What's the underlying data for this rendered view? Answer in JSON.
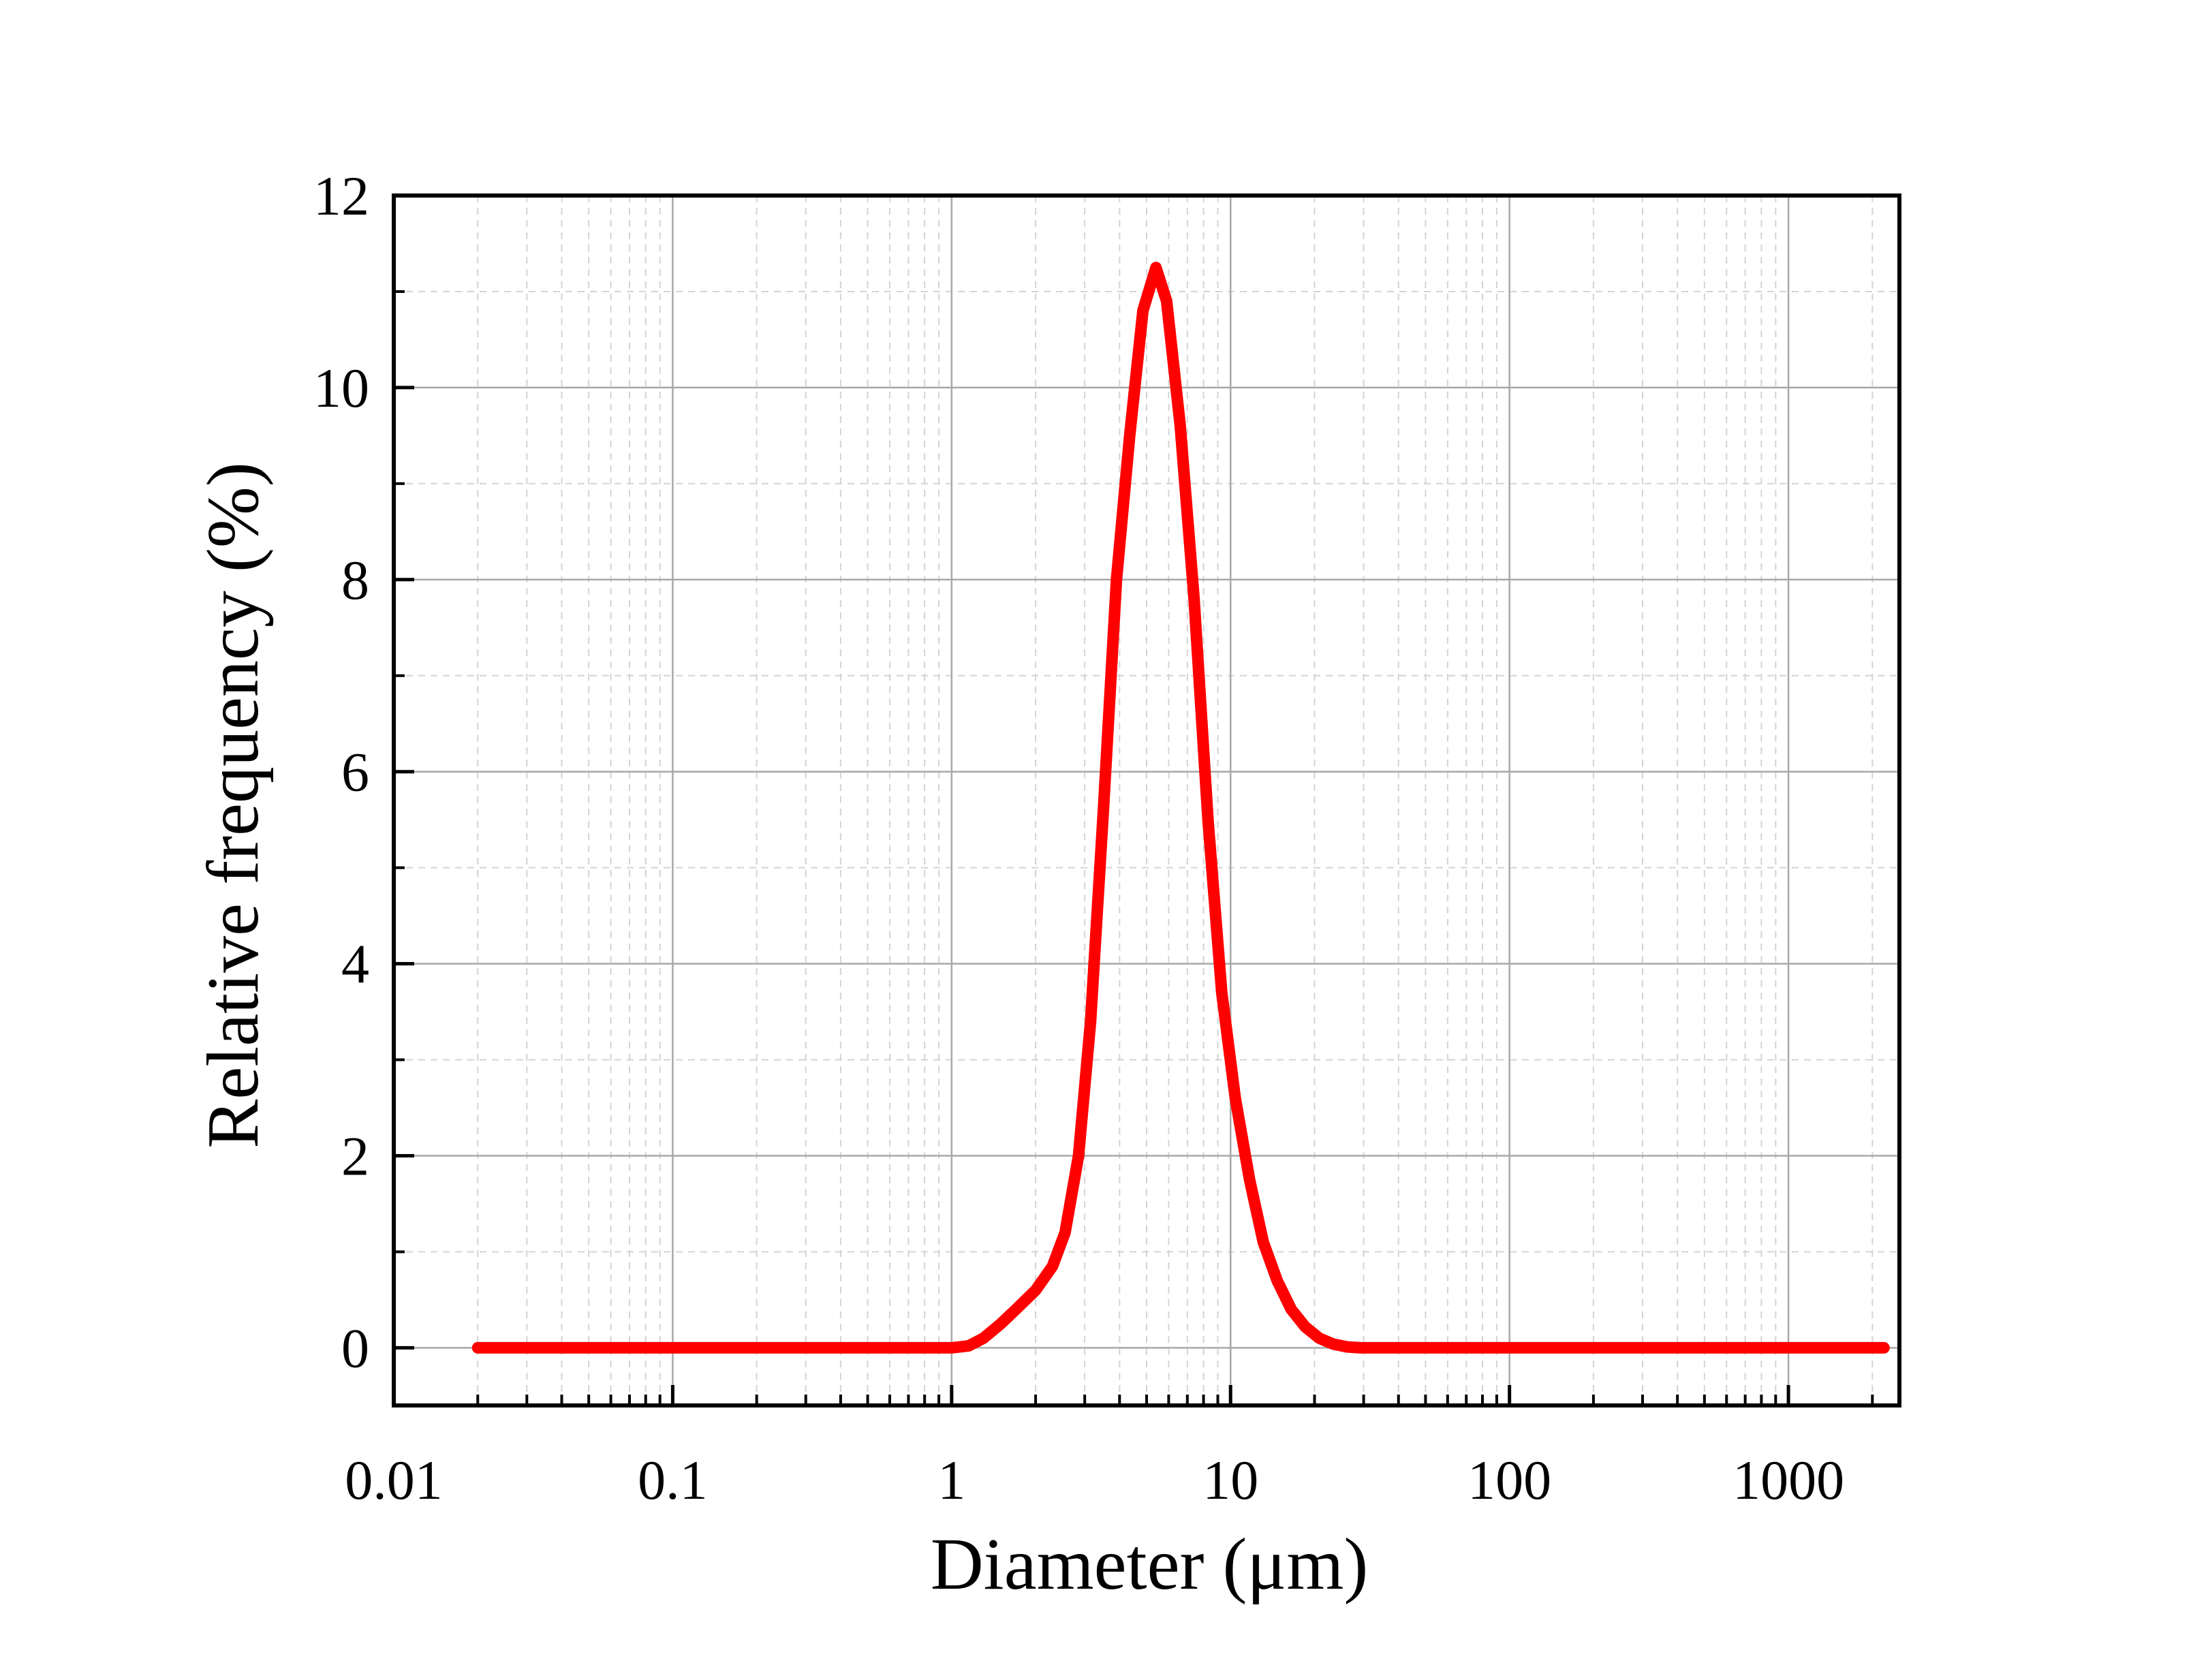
{
  "chart_data": {
    "type": "line",
    "title": "",
    "xlabel": "Diameter (μm)",
    "ylabel": "Relative frequency (%)",
    "x_scale": "log",
    "xlim": [
      0.01,
      2500
    ],
    "ylim": [
      -0.6,
      12
    ],
    "x_ticks": [
      0.01,
      0.1,
      1,
      10,
      100,
      1000
    ],
    "x_tick_labels": [
      "0.01",
      "0.1",
      "1",
      "10",
      "100",
      "1000"
    ],
    "y_ticks": [
      0,
      2,
      4,
      6,
      8,
      10,
      12
    ],
    "y_tick_labels": [
      "0",
      "2",
      "4",
      "6",
      "8",
      "10",
      "12"
    ],
    "grid": true,
    "legend": "none",
    "series": [
      {
        "color": "#ff0000",
        "x": [
          0.02,
          0.05,
          0.1,
          0.3,
          0.7,
          1.0,
          1.15,
          1.3,
          1.5,
          1.7,
          2.0,
          2.3,
          2.55,
          2.85,
          3.15,
          3.5,
          3.9,
          4.35,
          4.85,
          5.4,
          5.9,
          6.6,
          7.4,
          8.3,
          9.3,
          10.4,
          11.7,
          13.1,
          14.7,
          16.5,
          18.5,
          20.8,
          23.3,
          26.1,
          29.3,
          40,
          100,
          500,
          2200
        ],
        "y": [
          0,
          0,
          0,
          0,
          0,
          0,
          0.02,
          0.1,
          0.25,
          0.4,
          0.6,
          0.85,
          1.2,
          2.0,
          3.4,
          5.6,
          8.0,
          9.5,
          10.8,
          11.25,
          10.9,
          9.6,
          7.8,
          5.5,
          3.7,
          2.6,
          1.75,
          1.1,
          0.7,
          0.4,
          0.22,
          0.1,
          0.04,
          0.01,
          0,
          0,
          0,
          0,
          0
        ]
      }
    ]
  }
}
